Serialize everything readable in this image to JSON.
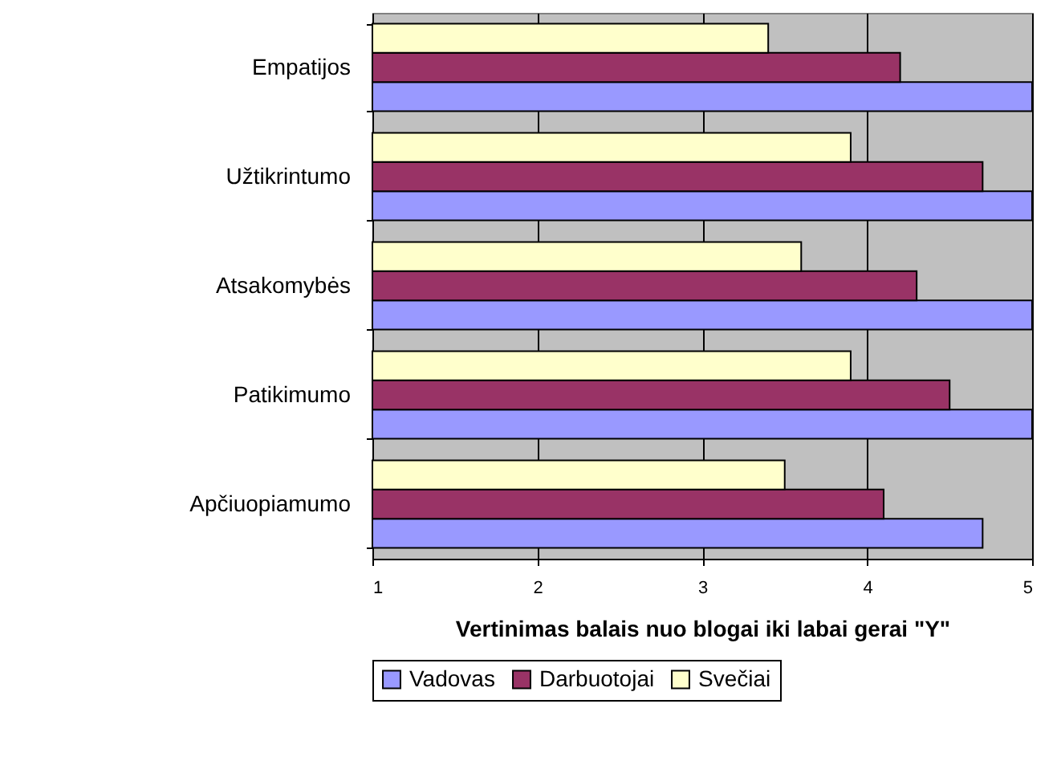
{
  "chart_data": {
    "type": "bar",
    "orientation": "horizontal",
    "xlabel": "Vertinimas balais nuo blogai iki labai gerai \"Y\"",
    "categories": [
      "Empatijos",
      "Užtikrintumo",
      "Atsakomybės",
      "Patikimumo",
      "Apčiuopiamumo"
    ],
    "series": [
      {
        "name": "Vadovas",
        "color": "#9999ff",
        "values": [
          5,
          5,
          5,
          5,
          4.7
        ]
      },
      {
        "name": "Darbuotojai",
        "color": "#993366",
        "values": [
          4.2,
          4.7,
          4.3,
          4.5,
          4.1
        ]
      },
      {
        "name": "Svečiai",
        "color": "#ffffcc",
        "values": [
          3.4,
          3.9,
          3.6,
          3.9,
          3.5
        ]
      }
    ],
    "xlim": [
      1,
      5
    ],
    "xticks": [
      1,
      2,
      3,
      4,
      5
    ],
    "grid": "x",
    "legend": "bottom"
  }
}
